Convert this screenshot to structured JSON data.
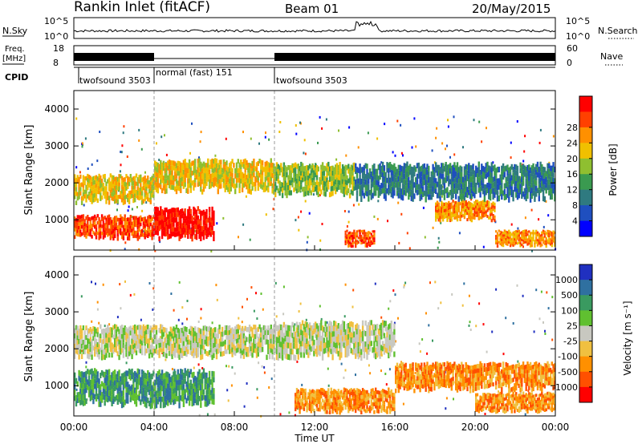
{
  "header": {
    "station": "Rankin Inlet (fitACF)",
    "beam": "Beam 01",
    "date": "20/May/2015"
  },
  "noise_panel": {
    "left_label": "N.Sky",
    "right_label": "N.Search",
    "ticks": [
      "10^5",
      "10^0"
    ]
  },
  "freq_panel": {
    "left_label_1": "Freq.",
    "left_label_2": "[MHz]",
    "left_ticks": [
      "18",
      "8"
    ],
    "right_label": "Nave",
    "right_ticks": [
      "60",
      "0"
    ]
  },
  "cpid": {
    "label": "CPID",
    "segments": [
      {
        "name": "twofsound 3503",
        "start_h": 0,
        "end_h": 4
      },
      {
        "name": "normal (fast) 151",
        "start_h": 4,
        "end_h": 10
      },
      {
        "name": "twofsound 3503",
        "start_h": 10,
        "end_h": 24
      }
    ]
  },
  "chart_data": [
    {
      "type": "heatmap",
      "panel": "power",
      "ylabel": "Slant Range [km]",
      "ylim": [
        180,
        4500
      ],
      "yticks": [
        "1000",
        "2000",
        "3000",
        "4000"
      ],
      "xlim": [
        0,
        24
      ],
      "colorbar_label": "Power [dB]",
      "colorbar_ticks": [
        "4",
        "8",
        "12",
        "16",
        "20",
        "24",
        "28"
      ],
      "colors": [
        "#0000ff",
        "#1f4fbf",
        "#2f7a80",
        "#3a9a50",
        "#8fbf30",
        "#f0c000",
        "#ff9000",
        "#ff4000",
        "#ff0000"
      ],
      "bands": [
        {
          "t0": 0,
          "t1": 4,
          "r0": 1500,
          "r1": 2200,
          "level": 5
        },
        {
          "t0": 0,
          "t1": 4,
          "r0": 500,
          "r1": 1100,
          "level": 7
        },
        {
          "t0": 4,
          "t1": 7,
          "r0": 500,
          "r1": 1300,
          "level": 8
        },
        {
          "t0": 4,
          "t1": 10,
          "r0": 1800,
          "r1": 2600,
          "level": 5
        },
        {
          "t0": 10,
          "t1": 14,
          "r0": 1700,
          "r1": 2500,
          "level": 4
        },
        {
          "t0": 13.5,
          "t1": 15,
          "r0": 300,
          "r1": 700,
          "level": 7
        },
        {
          "t0": 18,
          "t1": 21,
          "r0": 1000,
          "r1": 1500,
          "level": 6
        },
        {
          "t0": 21,
          "t1": 24,
          "r0": 300,
          "r1": 700,
          "level": 6
        },
        {
          "t0": 14,
          "t1": 24,
          "r0": 1600,
          "r1": 2500,
          "level": 2
        }
      ]
    },
    {
      "type": "heatmap",
      "panel": "velocity",
      "ylabel": "Slant Range [km]",
      "ylim": [
        180,
        4500
      ],
      "yticks": [
        "1000",
        "2000",
        "3000",
        "4000"
      ],
      "xlim": [
        0,
        24
      ],
      "xticks": [
        "00:00",
        "04:00",
        "08:00",
        "12:00",
        "16:00",
        "20:00",
        "00:00"
      ],
      "xlabel": "Time UT",
      "colorbar_label": "Velocity [m s⁻¹]",
      "colorbar_ticks": [
        "1000",
        "500",
        "100",
        "25",
        "-25",
        "-100",
        "-500",
        "-1000"
      ],
      "colors": [
        "#2030c0",
        "#2f70a0",
        "#3a9a60",
        "#60c030",
        "#c8c8c0",
        "#f0c040",
        "#ff9000",
        "#ff5000",
        "#ff0000"
      ],
      "bands": [
        {
          "t0": 0,
          "t1": 10,
          "r0": 1800,
          "r1": 2600,
          "level": 4
        },
        {
          "t0": 0,
          "t1": 7,
          "r0": 500,
          "r1": 1400,
          "level": 2
        },
        {
          "t0": 10,
          "t1": 16,
          "r0": 1800,
          "r1": 2700,
          "level": 4
        },
        {
          "t0": 11,
          "t1": 16,
          "r0": 300,
          "r1": 900,
          "level": 6
        },
        {
          "t0": 16,
          "t1": 24,
          "r0": 900,
          "r1": 1600,
          "level": 6
        },
        {
          "t0": 20,
          "t1": 24,
          "r0": 300,
          "r1": 800,
          "level": 6
        }
      ]
    }
  ]
}
